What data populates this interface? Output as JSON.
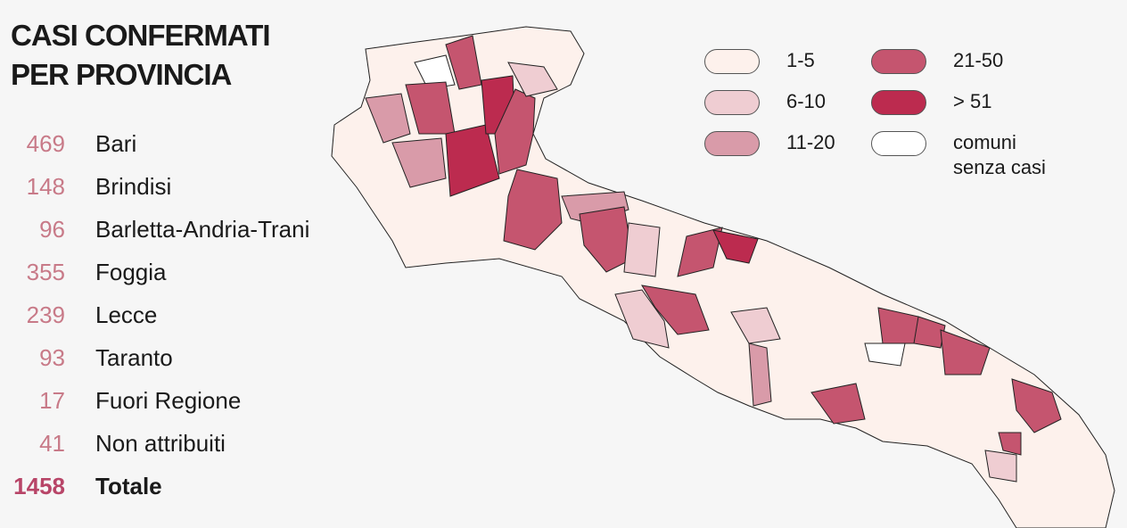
{
  "title_lines": [
    "CASI CONFERMATI",
    "PER PROVINCIA"
  ],
  "provinces": [
    {
      "count": 469,
      "name": "Bari"
    },
    {
      "count": 148,
      "name": "Brindisi"
    },
    {
      "count": 96,
      "name": "Barletta-Andria-Trani"
    },
    {
      "count": 355,
      "name": "Foggia"
    },
    {
      "count": 239,
      "name": "Lecce"
    },
    {
      "count": 93,
      "name": "Taranto"
    },
    {
      "count": 17,
      "name": "Fuori Regione"
    },
    {
      "count": 41,
      "name": "Non attribuiti"
    }
  ],
  "total": {
    "count": 1458,
    "name": "Totale"
  },
  "legend": [
    {
      "label": "1-5",
      "color": "#fdf1ec"
    },
    {
      "label": "6-10",
      "color": "#efcdd2"
    },
    {
      "label": "11-20",
      "color": "#d99ba9"
    },
    {
      "label": "21-50",
      "color": "#c5556f"
    },
    {
      "label": "> 51",
      "color": "#bc2b4f"
    },
    {
      "label": "comuni senza casi",
      "color": "#ffffff"
    }
  ]
}
